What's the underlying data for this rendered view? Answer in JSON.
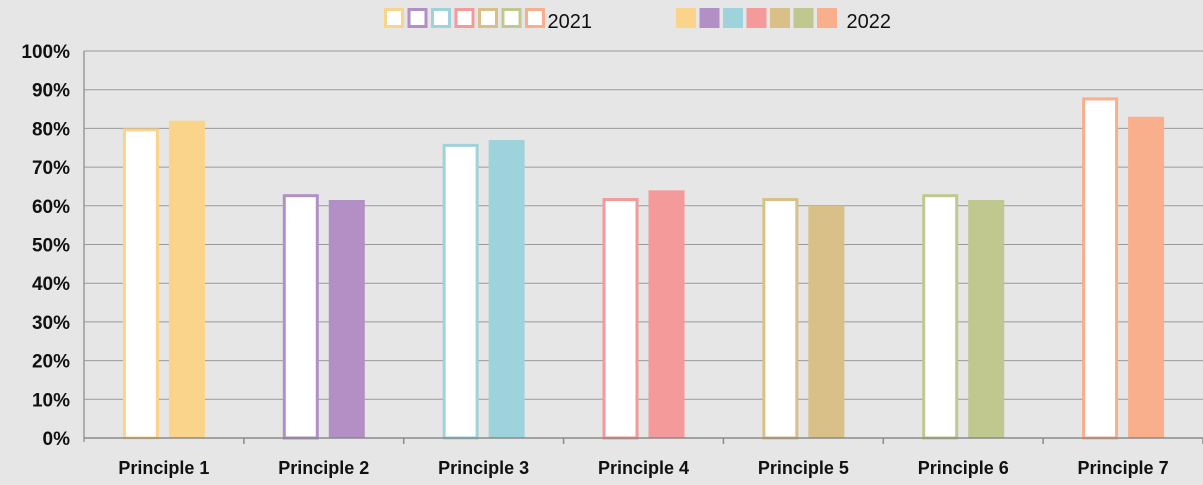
{
  "chart_data": {
    "type": "bar",
    "categories": [
      "Principle 1",
      "Principle 2",
      "Principle 3",
      "Principle 4",
      "Principle 5",
      "Principle 6",
      "Principle 7"
    ],
    "series": [
      {
        "name": "2021",
        "style": "outline",
        "values": [
          80,
          63,
          76,
          62,
          62,
          63,
          88
        ]
      },
      {
        "name": "2022",
        "style": "filled",
        "values": [
          82,
          61.5,
          77,
          64,
          60,
          61.5,
          83
        ]
      }
    ],
    "category_colors": [
      "#fbd48c",
      "#b28fc5",
      "#9fd3dc",
      "#f49a9a",
      "#d8c088",
      "#c0c890",
      "#f9af8c"
    ],
    "y_ticks": [
      "0%",
      "10%",
      "20%",
      "30%",
      "40%",
      "50%",
      "60%",
      "70%",
      "80%",
      "90%",
      "100%"
    ],
    "ylim": [
      0,
      100
    ],
    "y_unit": "%",
    "grid": true,
    "legend_position": "top"
  }
}
